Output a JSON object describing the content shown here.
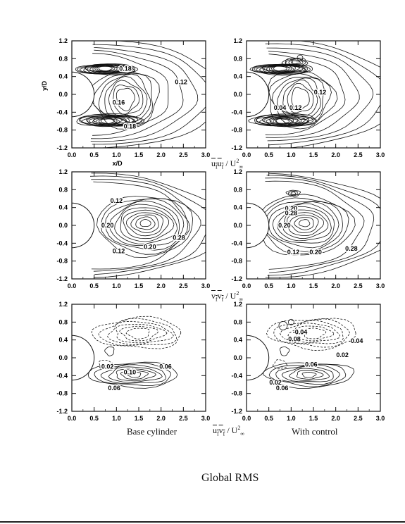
{
  "figure_title": "Global RMS",
  "captions": {
    "left": "Base cylinder",
    "right": "With control"
  },
  "row_quantities": [
    {
      "var": "u",
      "sub1": "f",
      "var2": "u",
      "sub2": "f",
      "denom": "/ U",
      "sup": "2",
      "subinf": "∞"
    },
    {
      "var": "v",
      "sub1": "f",
      "var2": "v",
      "sub2": "f",
      "denom": "/ U",
      "sup": "2",
      "subinf": "∞"
    },
    {
      "var": "u",
      "sub1": "f",
      "var2": "v",
      "sub2": "f",
      "denom": "/ U",
      "sup": "2",
      "subinf": "∞"
    }
  ],
  "chart_data": [
    {
      "type": "contour",
      "row": 1,
      "column": "Base cylinder",
      "quantity": "u_f u_f / U_inf^2",
      "xlabel": "x/D",
      "ylabel": "y/D",
      "xlim": [
        0.0,
        3.0
      ],
      "ylim": [
        -1.2,
        1.2
      ],
      "xticks": [
        "0.0",
        "0.5",
        "1.0",
        "1.5",
        "2.0",
        "2.5",
        "3.0"
      ],
      "yticks": [
        "1.2",
        "0.8",
        "0.4",
        "0.0",
        "-0.4",
        "-0.8",
        "-1.2"
      ],
      "contour_labels": [
        {
          "text": "0.12",
          "x": 2.45,
          "y": 0.28
        },
        {
          "text": "0.18",
          "x": 1.2,
          "y": 0.58
        },
        {
          "text": "0.18",
          "x": 1.3,
          "y": -0.72
        },
        {
          "text": "0.16",
          "x": 1.05,
          "y": -0.18
        }
      ]
    },
    {
      "type": "contour",
      "row": 1,
      "column": "With control",
      "quantity": "u_f u_f / U_inf^2",
      "xlim": [
        0.0,
        3.0
      ],
      "ylim": [
        -1.2,
        1.2
      ],
      "xticks": [
        "0.0",
        "0.5",
        "1.0",
        "1.5",
        "2.0",
        "2.5",
        "3.0"
      ],
      "yticks": [
        "1.2",
        "0.8",
        "0.4",
        "0.0",
        "-0.4",
        "-0.8",
        "-1.2"
      ],
      "contour_labels": [
        {
          "text": "0.12",
          "x": 1.65,
          "y": 0.05
        },
        {
          "text": "0.04",
          "x": 0.75,
          "y": -0.3
        },
        {
          "text": "0.12",
          "x": 1.1,
          "y": -0.3
        }
      ]
    },
    {
      "type": "contour",
      "row": 2,
      "column": "Base cylinder",
      "quantity": "v_f v_f / U_inf^2",
      "xlim": [
        0.0,
        3.0
      ],
      "ylim": [
        -1.2,
        1.2
      ],
      "xticks": [
        "0.0",
        "0.5",
        "1.0",
        "1.5",
        "2.0",
        "2.5",
        "3.0"
      ],
      "yticks": [
        "1.2",
        "0.8",
        "0.4",
        "0.0",
        "-0.4",
        "-0.8",
        "-1.2"
      ],
      "contour_labels": [
        {
          "text": "0.12",
          "x": 1.0,
          "y": 0.55
        },
        {
          "text": "0.20",
          "x": 0.8,
          "y": 0.0
        },
        {
          "text": "0.28",
          "x": 2.4,
          "y": -0.28
        },
        {
          "text": "0.12",
          "x": 1.05,
          "y": -0.58
        },
        {
          "text": "0.20",
          "x": 1.75,
          "y": -0.48
        }
      ]
    },
    {
      "type": "contour",
      "row": 2,
      "column": "With control",
      "quantity": "v_f v_f / U_inf^2",
      "xlim": [
        0.0,
        3.0
      ],
      "ylim": [
        -1.2,
        1.2
      ],
      "xticks": [
        "0.0",
        "0.5",
        "1.0",
        "1.5",
        "2.0",
        "2.5",
        "3.0"
      ],
      "yticks": [
        "1.2",
        "0.8",
        "0.4",
        "0.0",
        "-0.4",
        "-0.8",
        "-1.2"
      ],
      "contour_labels": [
        {
          "text": "0.20",
          "x": 1.0,
          "y": 0.38
        },
        {
          "text": "0.28",
          "x": 1.0,
          "y": 0.28
        },
        {
          "text": "0.20",
          "x": 0.85,
          "y": 0.0
        },
        {
          "text": "0.28",
          "x": 2.35,
          "y": -0.52
        },
        {
          "text": "0.12",
          "x": 1.05,
          "y": -0.6
        },
        {
          "text": "0.20",
          "x": 1.55,
          "y": -0.6
        }
      ]
    },
    {
      "type": "contour",
      "row": 3,
      "column": "Base cylinder",
      "quantity": "u_f v_f / U_inf^2",
      "xlim": [
        0.0,
        3.0
      ],
      "ylim": [
        -1.2,
        1.2
      ],
      "xticks": [
        "0.0",
        "0.5",
        "1.0",
        "1.5",
        "2.0",
        "2.5",
        "3.0"
      ],
      "yticks": [
        "1.2",
        "0.8",
        "0.4",
        "0.0",
        "-0.4",
        "-0.8",
        "-1.2"
      ],
      "contour_labels": [
        {
          "text": "0.02",
          "x": 0.8,
          "y": -0.2
        },
        {
          "text": "0.10",
          "x": 1.3,
          "y": -0.32
        },
        {
          "text": "0.06",
          "x": 2.1,
          "y": -0.2
        },
        {
          "text": "0.06",
          "x": 0.95,
          "y": -0.68
        }
      ]
    },
    {
      "type": "contour",
      "row": 3,
      "column": "With control",
      "quantity": "u_f v_f / U_inf^2",
      "xlim": [
        0.0,
        3.0
      ],
      "ylim": [
        -1.2,
        1.2
      ],
      "xticks": [
        "0.0",
        "0.5",
        "1.0",
        "1.5",
        "2.0",
        "2.5",
        "3.0"
      ],
      "yticks": [
        "1.2",
        "0.8",
        "0.4",
        "0.0",
        "-0.4",
        "-0.8",
        "-1.2"
      ],
      "contour_labels": [
        {
          "text": "-0.04",
          "x": 1.2,
          "y": 0.58
        },
        {
          "text": "-0.08",
          "x": 1.05,
          "y": 0.42
        },
        {
          "text": "-0.04",
          "x": 2.45,
          "y": 0.38
        },
        {
          "text": "0.02",
          "x": 2.15,
          "y": 0.06
        },
        {
          "text": "0.06",
          "x": 1.45,
          "y": -0.15
        },
        {
          "text": "0.02",
          "x": 0.65,
          "y": -0.55
        },
        {
          "text": "0.06",
          "x": 0.8,
          "y": -0.68
        }
      ]
    }
  ]
}
